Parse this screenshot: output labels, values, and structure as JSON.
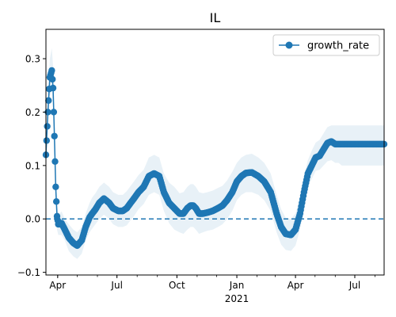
{
  "colors": {
    "series": "#1f77b4",
    "band": "#1f77b4",
    "zero_line": "#1f77b4",
    "axis": "#000000",
    "background": "#ffffff"
  },
  "chart_data": {
    "type": "line",
    "title": "IL",
    "xlabel": "",
    "ylabel": "",
    "grid": false,
    "legend_placement": "top-right",
    "x_range": [
      "2020-03-14",
      "2021-08-15"
    ],
    "ylim": [
      -0.105,
      0.355
    ],
    "y_ticks": [
      -0.1,
      0.0,
      0.1,
      0.2,
      0.3
    ],
    "y_tick_labels": [
      "−0.1",
      "0.0",
      "0.1",
      "0.2",
      "0.3"
    ],
    "x_ticks": [
      {
        "date": "2020-04-01",
        "label": "Apr"
      },
      {
        "date": "2020-07-01",
        "label": "Jul"
      },
      {
        "date": "2020-10-01",
        "label": "Oct"
      },
      {
        "date": "2021-01-01",
        "label": "Jan",
        "sublabel": "2021"
      },
      {
        "date": "2021-04-01",
        "label": "Apr"
      },
      {
        "date": "2021-07-01",
        "label": "Jul"
      }
    ],
    "reference_line": {
      "y": 0.0,
      "style": "dashed"
    },
    "series": [
      {
        "name": "growth_rate",
        "marker": "circle",
        "x": [
          "2020-03-14",
          "2020-03-17",
          "2020-03-20",
          "2020-03-23",
          "2020-03-25",
          "2020-03-27",
          "2020-03-29",
          "2020-03-31",
          "2020-04-02",
          "2020-04-04",
          "2020-04-07",
          "2020-04-12",
          "2020-04-18",
          "2020-04-25",
          "2020-05-01",
          "2020-05-08",
          "2020-05-14",
          "2020-05-20",
          "2020-05-24",
          "2020-05-29",
          "2020-06-04",
          "2020-06-11",
          "2020-06-19",
          "2020-06-25",
          "2020-07-03",
          "2020-07-10",
          "2020-07-16",
          "2020-07-22",
          "2020-07-27",
          "2020-08-03",
          "2020-08-11",
          "2020-08-19",
          "2020-08-27",
          "2020-09-04",
          "2020-09-11",
          "2020-09-19",
          "2020-09-27",
          "2020-10-05",
          "2020-10-11",
          "2020-10-17",
          "2020-10-22",
          "2020-10-26",
          "2020-10-30",
          "2020-11-04",
          "2020-11-10",
          "2020-11-17",
          "2020-11-25",
          "2020-12-03",
          "2020-12-10",
          "2020-12-17",
          "2020-12-25",
          "2021-01-01",
          "2021-01-08",
          "2021-01-15",
          "2021-01-24",
          "2021-02-03",
          "2021-02-12",
          "2021-02-22",
          "2021-03-03",
          "2021-03-10",
          "2021-03-17",
          "2021-03-25",
          "2021-04-01",
          "2021-04-08",
          "2021-04-14",
          "2021-04-20",
          "2021-04-26",
          "2021-05-02",
          "2021-05-08",
          "2021-05-14",
          "2021-05-20",
          "2021-05-26",
          "2021-06-01",
          "2021-06-06",
          "2021-06-11",
          "2021-06-16",
          "2021-06-22",
          "2021-06-27",
          "2021-07-03",
          "2021-07-10",
          "2021-07-16",
          "2021-07-22",
          "2021-07-30",
          "2021-08-07",
          "2021-08-15"
        ],
        "values": [
          0.12,
          0.2,
          0.265,
          0.278,
          0.245,
          0.155,
          0.06,
          0.005,
          -0.01,
          -0.01,
          -0.008,
          -0.02,
          -0.035,
          -0.045,
          -0.05,
          -0.04,
          -0.015,
          0.003,
          0.01,
          0.018,
          0.03,
          0.038,
          0.03,
          0.02,
          0.015,
          0.015,
          0.02,
          0.03,
          0.038,
          0.05,
          0.06,
          0.08,
          0.085,
          0.08,
          0.05,
          0.03,
          0.02,
          0.01,
          0.01,
          0.02,
          0.025,
          0.025,
          0.02,
          0.01,
          0.01,
          0.012,
          0.015,
          0.02,
          0.025,
          0.035,
          0.05,
          0.07,
          0.08,
          0.086,
          0.087,
          0.08,
          0.07,
          0.05,
          0.01,
          -0.015,
          -0.028,
          -0.03,
          -0.02,
          0.01,
          0.05,
          0.085,
          0.1,
          0.115,
          0.118,
          0.13,
          0.142,
          0.145,
          0.14,
          0.14,
          0.14,
          0.14,
          0.14,
          0.14,
          0.14,
          0.14,
          0.14,
          0.14,
          0.14,
          0.14,
          0.14
        ]
      }
    ],
    "uncertainty_band": {
      "lower": [
        0.1,
        0.17,
        0.23,
        0.24,
        0.205,
        0.125,
        0.035,
        -0.02,
        -0.03,
        -0.03,
        -0.03,
        -0.04,
        -0.06,
        -0.07,
        -0.075,
        -0.065,
        -0.04,
        -0.025,
        -0.018,
        -0.01,
        0.0,
        0.008,
        0.0,
        -0.01,
        -0.015,
        -0.015,
        -0.012,
        -0.002,
        0.005,
        0.018,
        0.028,
        0.045,
        0.05,
        0.045,
        0.015,
        -0.008,
        -0.02,
        -0.025,
        -0.028,
        -0.02,
        -0.015,
        -0.015,
        -0.02,
        -0.028,
        -0.025,
        -0.022,
        -0.02,
        -0.015,
        -0.01,
        0.0,
        0.015,
        0.035,
        0.045,
        0.05,
        0.05,
        0.045,
        0.035,
        0.015,
        -0.025,
        -0.048,
        -0.058,
        -0.06,
        -0.05,
        -0.02,
        0.02,
        0.06,
        0.075,
        0.09,
        0.092,
        0.1,
        0.108,
        0.11,
        0.105,
        0.105,
        0.1,
        0.1,
        0.1,
        0.1,
        0.1,
        0.1,
        0.1,
        0.1,
        0.1,
        0.1,
        0.1
      ],
      "upper": [
        0.14,
        0.23,
        0.3,
        0.32,
        0.285,
        0.185,
        0.085,
        0.03,
        0.012,
        0.01,
        0.014,
        0.0,
        -0.01,
        -0.02,
        -0.025,
        -0.015,
        0.01,
        0.03,
        0.04,
        0.048,
        0.06,
        0.068,
        0.06,
        0.05,
        0.045,
        0.045,
        0.052,
        0.062,
        0.07,
        0.082,
        0.092,
        0.115,
        0.12,
        0.115,
        0.085,
        0.068,
        0.06,
        0.048,
        0.05,
        0.06,
        0.065,
        0.065,
        0.06,
        0.05,
        0.048,
        0.05,
        0.053,
        0.058,
        0.062,
        0.072,
        0.088,
        0.105,
        0.115,
        0.12,
        0.122,
        0.115,
        0.105,
        0.085,
        0.045,
        0.018,
        0.002,
        0.0,
        0.01,
        0.04,
        0.08,
        0.11,
        0.128,
        0.143,
        0.148,
        0.16,
        0.172,
        0.175,
        0.175,
        0.175,
        0.175,
        0.175,
        0.175,
        0.175,
        0.175,
        0.175,
        0.175,
        0.175,
        0.175,
        0.175,
        0.175
      ]
    }
  }
}
